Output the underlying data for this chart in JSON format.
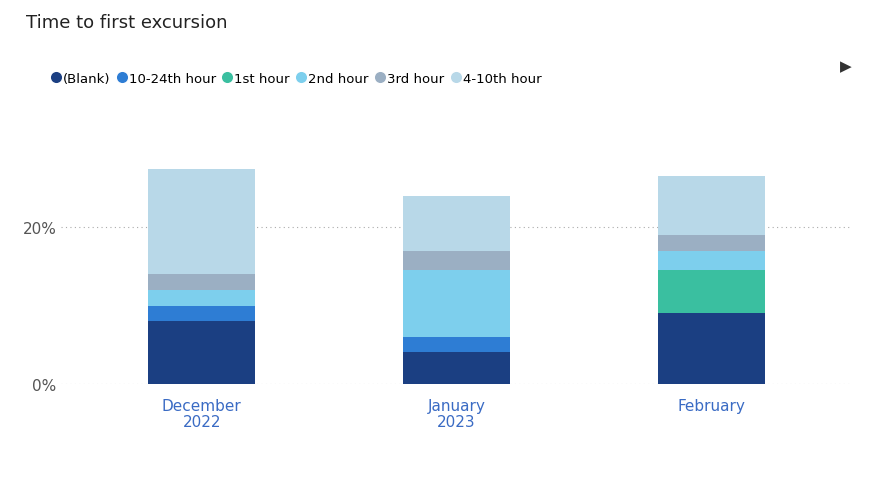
{
  "title": "Time to first excursion",
  "segments_order": [
    "(Blank)",
    "10-24th hour",
    "1st hour",
    "2nd hour",
    "3rd hour",
    "4-10th hour"
  ],
  "segments": {
    "(Blank)": [
      0.08,
      0.04,
      0.09
    ],
    "10-24th hour": [
      0.02,
      0.02,
      0.0
    ],
    "1st hour": [
      0.0,
      0.0,
      0.055
    ],
    "2nd hour": [
      0.02,
      0.085,
      0.025
    ],
    "3rd hour": [
      0.02,
      0.025,
      0.02
    ],
    "4-10th hour": [
      0.135,
      0.07,
      0.075
    ]
  },
  "colors": {
    "(Blank)": "#1b3f82",
    "10-24th hour": "#2e7dd4",
    "1st hour": "#3abfa0",
    "2nd hour": "#7dcfed",
    "3rd hour": "#9bafc3",
    "4-10th hour": "#b8d8e8"
  },
  "legend_order": [
    "(Blank)",
    "10-24th hour",
    "1st hour",
    "2nd hour",
    "3rd hour",
    "4-10th hour"
  ],
  "ylim": [
    0,
    0.295
  ],
  "yticks": [
    0.0,
    0.2
  ],
  "ytick_labels": [
    "0%",
    "20%"
  ],
  "background_color": "#ffffff",
  "bar_width": 0.42,
  "bar_positions": [
    0,
    1,
    2
  ],
  "month_labels": [
    "December",
    "January",
    "February"
  ],
  "year_labels": [
    [
      "",
      "2022"
    ],
    [
      "",
      "2023"
    ],
    [
      "",
      ""
    ]
  ],
  "month_year_under": {
    "0": "2022",
    "1": "2023"
  },
  "figsize": [
    8.78,
    4.81
  ],
  "dpi": 100
}
